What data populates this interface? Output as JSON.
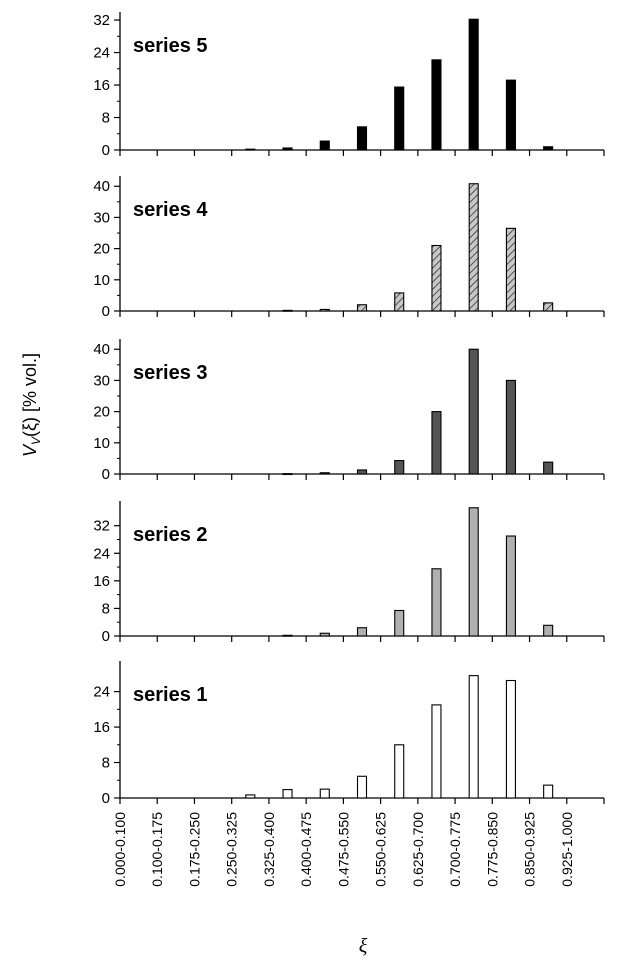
{
  "chart_data": {
    "type": "bar",
    "ylabel": "V_V(ξ) [% vol.]",
    "ylabel_main": "V",
    "ylabel_sub": "V",
    "ylabel_rest": "(ξ)  [% vol.]",
    "xlabel": "ξ",
    "categories": [
      "0.000-0.100",
      "0.100-0.175",
      "0.175-0.250",
      "0.250-0.325",
      "0.325-0.400",
      "0.400-0.475",
      "0.475-0.550",
      "0.550-0.625",
      "0.625-0.700",
      "0.700-0.775",
      "0.775-0.850",
      "0.850-0.925",
      "0.925-1.000"
    ],
    "panels": [
      {
        "name": "series 5",
        "color": "#000000",
        "pattern": "solid",
        "ylim": [
          0,
          33
        ],
        "yticks": [
          0,
          8,
          16,
          24,
          32
        ],
        "values": [
          0,
          0,
          0,
          0.2,
          0.5,
          2.2,
          5.7,
          15.5,
          22.2,
          32.2,
          17.2,
          0.8,
          0
        ]
      },
      {
        "name": "series 4",
        "color": "#888888",
        "pattern": "hatch",
        "ylim": [
          0,
          42
        ],
        "yticks": [
          0,
          10,
          20,
          30,
          40
        ],
        "values": [
          0,
          0,
          0,
          0,
          0.2,
          0.5,
          2.0,
          5.8,
          21.0,
          40.8,
          26.5,
          2.6,
          0
        ]
      },
      {
        "name": "series 3",
        "color": "#555555",
        "pattern": "solid",
        "ylim": [
          0,
          42
        ],
        "yticks": [
          0,
          10,
          20,
          30,
          40
        ],
        "values": [
          0,
          0,
          0,
          0,
          0.1,
          0.4,
          1.3,
          4.3,
          20.0,
          40.0,
          30.0,
          3.8,
          0
        ]
      },
      {
        "name": "series 2",
        "color": "#b0b0b0",
        "pattern": "solid",
        "ylim": [
          0,
          38
        ],
        "yticks": [
          0,
          8,
          16,
          24,
          32
        ],
        "values": [
          0,
          0,
          0,
          0,
          0.2,
          0.8,
          2.4,
          7.4,
          19.5,
          37.2,
          29.0,
          3.1,
          0
        ]
      },
      {
        "name": "series 1",
        "color": "#ffffff",
        "pattern": "solid",
        "ylim": [
          0,
          30
        ],
        "yticks": [
          0,
          8,
          16,
          24
        ],
        "values": [
          0,
          0,
          0,
          0.7,
          1.9,
          2.0,
          4.9,
          12.0,
          21.0,
          27.6,
          26.5,
          2.9,
          0
        ]
      }
    ]
  }
}
